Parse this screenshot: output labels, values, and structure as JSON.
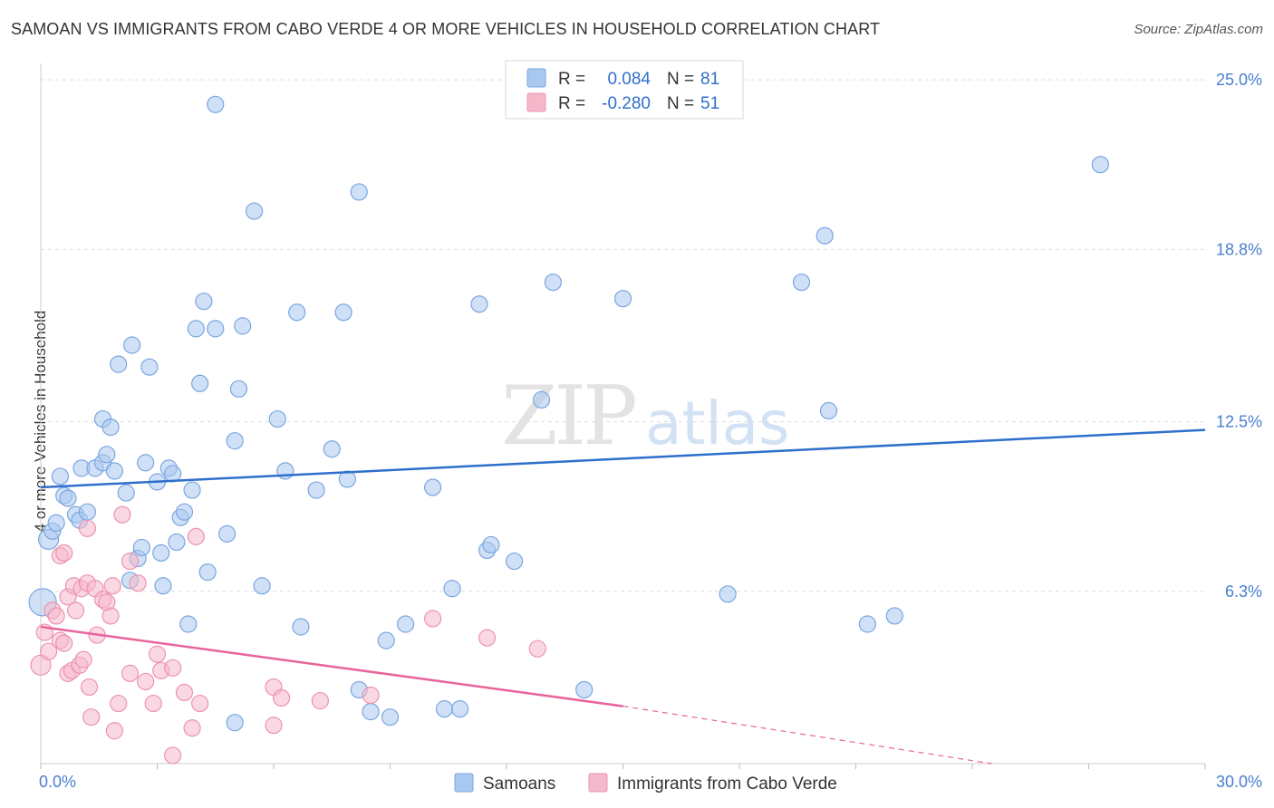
{
  "title": "SAMOAN VS IMMIGRANTS FROM CABO VERDE 4 OR MORE VEHICLES IN HOUSEHOLD CORRELATION CHART",
  "source": "Source: ZipAtlas.com",
  "watermark": {
    "zip": "ZIP",
    "atlas": "atlas"
  },
  "colors": {
    "blue_fill": "#a9c8f0",
    "blue_stroke": "#7aa6e0",
    "blue_line": "#2f6fcc",
    "pink_fill": "#f5b8cb",
    "pink_stroke": "#ec93b0",
    "pink_line": "#e8649a",
    "axis_text": "#4a7fd0",
    "grid": "#dddddd"
  },
  "legend": [
    {
      "r_label": "R =",
      "r_value": "0.084",
      "n_label": "N =",
      "n_value": "81"
    },
    {
      "r_label": "R =",
      "r_value": "-0.280",
      "n_label": "N =",
      "n_value": "51"
    }
  ],
  "chart_data": {
    "type": "scatter",
    "title": "SAMOAN VS IMMIGRANTS FROM CABO VERDE 4 OR MORE VEHICLES IN HOUSEHOLD CORRELATION CHART",
    "xlabel": "",
    "ylabel": "4 or more Vehicles in Household",
    "xlim": [
      0,
      30
    ],
    "ylim": [
      0,
      25.6
    ],
    "x_tick_labels": [
      "0.0%",
      "30.0%"
    ],
    "y_ticks": [
      6.3,
      12.5,
      18.8,
      25.0
    ],
    "y_tick_labels": [
      "6.3%",
      "12.5%",
      "18.8%",
      "25.0%"
    ],
    "grid": true,
    "legend_position": "top-center",
    "series": [
      {
        "name": "Samoans",
        "color": "#a9c8f0",
        "trend": {
          "x": [
            0,
            30
          ],
          "y": [
            10.1,
            12.2
          ]
        },
        "points": [
          [
            0.05,
            5.9
          ],
          [
            0.2,
            8.2
          ],
          [
            0.3,
            8.5
          ],
          [
            0.4,
            8.8
          ],
          [
            0.5,
            10.5
          ],
          [
            0.6,
            9.8
          ],
          [
            0.7,
            9.7
          ],
          [
            0.9,
            9.1
          ],
          [
            1.0,
            8.9
          ],
          [
            1.05,
            10.8
          ],
          [
            1.2,
            9.2
          ],
          [
            1.4,
            10.8
          ],
          [
            1.6,
            11.0
          ],
          [
            1.6,
            12.6
          ],
          [
            1.7,
            11.3
          ],
          [
            1.8,
            12.3
          ],
          [
            1.9,
            10.7
          ],
          [
            2.0,
            14.6
          ],
          [
            2.2,
            9.9
          ],
          [
            2.3,
            6.7
          ],
          [
            2.35,
            15.3
          ],
          [
            2.5,
            7.5
          ],
          [
            2.6,
            7.9
          ],
          [
            2.7,
            11.0
          ],
          [
            2.8,
            14.5
          ],
          [
            3.0,
            10.3
          ],
          [
            3.1,
            7.7
          ],
          [
            3.15,
            6.5
          ],
          [
            3.3,
            10.8
          ],
          [
            3.4,
            10.6
          ],
          [
            3.5,
            8.1
          ],
          [
            3.6,
            9.0
          ],
          [
            3.7,
            9.2
          ],
          [
            3.8,
            5.1
          ],
          [
            3.9,
            10.0
          ],
          [
            4.0,
            15.9
          ],
          [
            4.1,
            13.9
          ],
          [
            4.2,
            16.9
          ],
          [
            4.3,
            7.0
          ],
          [
            4.5,
            24.1
          ],
          [
            4.5,
            15.9
          ],
          [
            4.8,
            8.4
          ],
          [
            5.0,
            11.8
          ],
          [
            5.1,
            13.7
          ],
          [
            5.2,
            16.0
          ],
          [
            5.5,
            20.2
          ],
          [
            5.7,
            6.5
          ],
          [
            6.1,
            12.6
          ],
          [
            6.3,
            10.7
          ],
          [
            6.6,
            16.5
          ],
          [
            6.7,
            5.0
          ],
          [
            7.1,
            10.0
          ],
          [
            7.5,
            11.5
          ],
          [
            7.8,
            16.5
          ],
          [
            7.9,
            10.4
          ],
          [
            8.2,
            20.9
          ],
          [
            8.2,
            2.7
          ],
          [
            8.5,
            1.9
          ],
          [
            8.9,
            4.5
          ],
          [
            9.0,
            1.7
          ],
          [
            9.4,
            5.1
          ],
          [
            10.1,
            10.1
          ],
          [
            10.4,
            2.0
          ],
          [
            10.6,
            6.4
          ],
          [
            10.8,
            2.0
          ],
          [
            11.3,
            16.8
          ],
          [
            11.5,
            7.8
          ],
          [
            11.6,
            8.0
          ],
          [
            12.2,
            7.4
          ],
          [
            12.9,
            13.3
          ],
          [
            13.2,
            17.6
          ],
          [
            14.0,
            2.7
          ],
          [
            15.0,
            17.0
          ],
          [
            17.7,
            6.2
          ],
          [
            19.6,
            17.6
          ],
          [
            20.2,
            19.3
          ],
          [
            20.3,
            12.9
          ],
          [
            21.3,
            5.1
          ],
          [
            22.0,
            5.4
          ],
          [
            27.3,
            21.9
          ],
          [
            5.0,
            1.5
          ]
        ]
      },
      {
        "name": "Immigrants from Cabo Verde",
        "color": "#f5b8cb",
        "trend": {
          "x": [
            0,
            15
          ],
          "y": [
            5.0,
            2.1
          ]
        },
        "trend_dashed": {
          "x": [
            15,
            24.5
          ],
          "y": [
            2.1,
            0.0
          ]
        },
        "points": [
          [
            0.0,
            3.6
          ],
          [
            0.1,
            4.8
          ],
          [
            0.2,
            4.1
          ],
          [
            0.3,
            5.6
          ],
          [
            0.4,
            5.4
          ],
          [
            0.5,
            4.5
          ],
          [
            0.5,
            7.6
          ],
          [
            0.6,
            4.4
          ],
          [
            0.6,
            7.7
          ],
          [
            0.7,
            3.3
          ],
          [
            0.7,
            6.1
          ],
          [
            0.8,
            3.4
          ],
          [
            0.85,
            6.5
          ],
          [
            0.9,
            5.6
          ],
          [
            1.0,
            3.6
          ],
          [
            1.05,
            6.4
          ],
          [
            1.1,
            3.8
          ],
          [
            1.2,
            6.6
          ],
          [
            1.2,
            8.6
          ],
          [
            1.25,
            2.8
          ],
          [
            1.3,
            1.7
          ],
          [
            1.4,
            6.4
          ],
          [
            1.45,
            4.7
          ],
          [
            1.6,
            6.0
          ],
          [
            1.7,
            5.9
          ],
          [
            1.8,
            5.4
          ],
          [
            1.85,
            6.5
          ],
          [
            1.9,
            1.2
          ],
          [
            2.0,
            2.2
          ],
          [
            2.1,
            9.1
          ],
          [
            2.3,
            3.3
          ],
          [
            2.3,
            7.4
          ],
          [
            2.5,
            6.6
          ],
          [
            2.7,
            3.0
          ],
          [
            2.9,
            2.2
          ],
          [
            3.0,
            4.0
          ],
          [
            3.1,
            3.4
          ],
          [
            3.4,
            3.5
          ],
          [
            3.4,
            0.3
          ],
          [
            3.7,
            2.6
          ],
          [
            3.9,
            1.3
          ],
          [
            4.0,
            8.3
          ],
          [
            4.1,
            2.2
          ],
          [
            6.0,
            2.8
          ],
          [
            6.0,
            1.4
          ],
          [
            6.2,
            2.4
          ],
          [
            7.2,
            2.3
          ],
          [
            8.5,
            2.5
          ],
          [
            10.1,
            5.3
          ],
          [
            11.5,
            4.6
          ],
          [
            12.8,
            4.2
          ]
        ]
      }
    ]
  }
}
